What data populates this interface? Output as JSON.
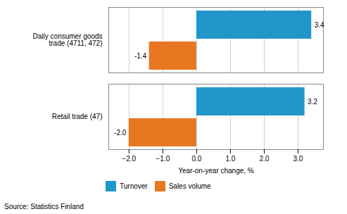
{
  "chart_data": {
    "type": "bar",
    "orientation": "horizontal",
    "categories": [
      "Daily consumer goods trade (4711, 472)",
      "Retail trade (47)"
    ],
    "series": [
      {
        "name": "Turnover",
        "color": "#2196C8",
        "values": [
          3.4,
          3.2
        ],
        "value_labels": [
          "3.4",
          "3.2"
        ]
      },
      {
        "name": "Sales volume",
        "color": "#E87722",
        "values": [
          -1.4,
          -2.0
        ],
        "value_labels": [
          "-1.4",
          "-2.0"
        ]
      }
    ],
    "xlabel": "Year-on-year change, %",
    "xlim": [
      -2.6,
      3.75
    ],
    "xticks": [
      -2,
      -1,
      0,
      1,
      2,
      3
    ],
    "grid": true,
    "legend": "bottom",
    "data_labels": true,
    "annotations": [
      "Source: Statistics Finland"
    ]
  }
}
